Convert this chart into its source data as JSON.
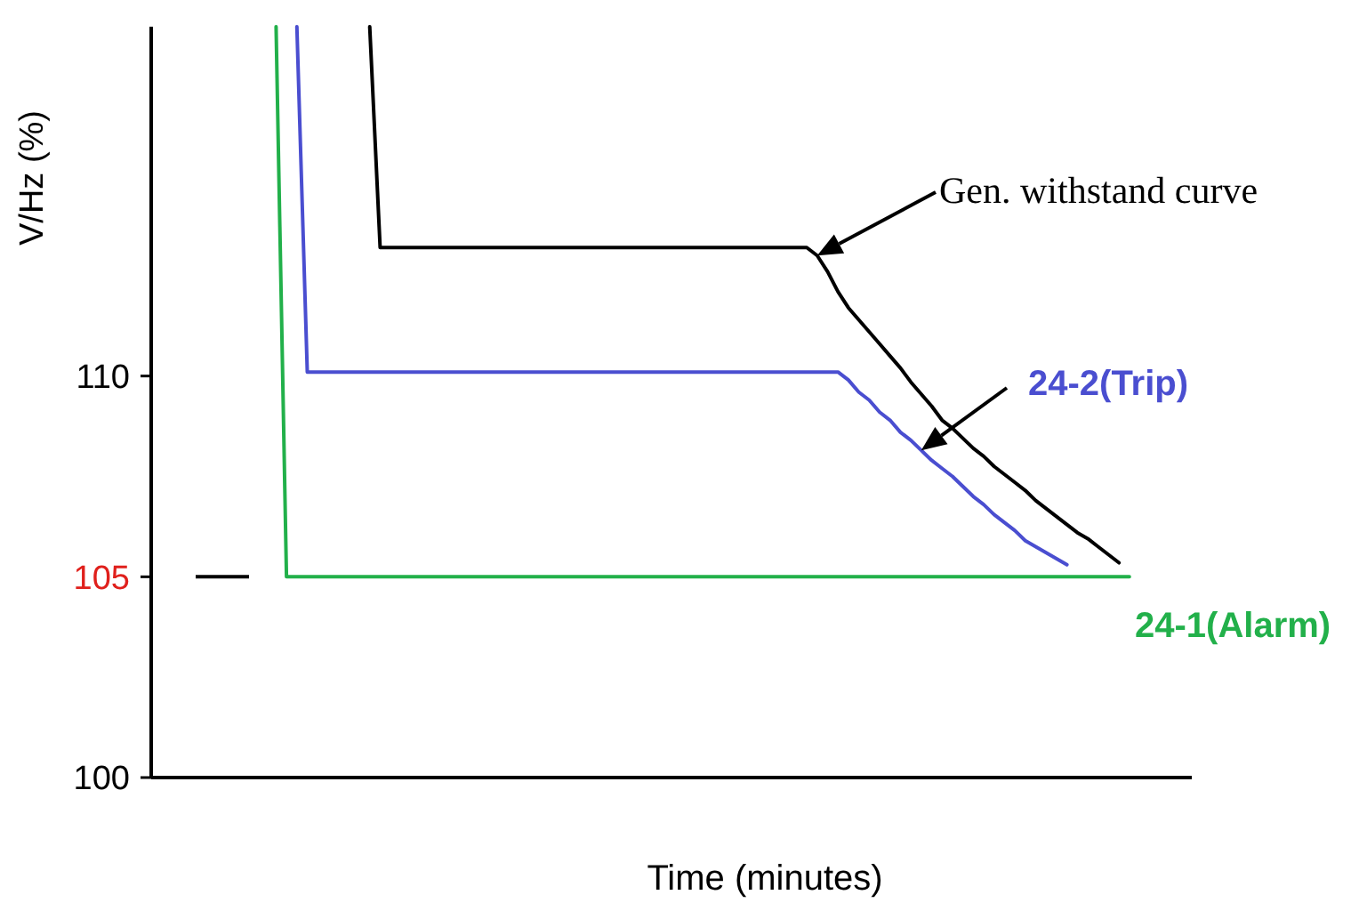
{
  "chart_data": {
    "type": "line",
    "xlabel": "Time (minutes)",
    "ylabel": "V/Hz (%)",
    "categories": [
      null,
      null,
      null,
      null,
      null,
      null,
      null,
      null,
      null,
      null,
      null,
      null,
      null,
      null,
      null,
      null,
      null,
      null,
      null,
      null,
      null,
      null,
      null,
      null,
      null,
      null,
      null,
      null,
      null,
      null,
      null,
      null,
      null,
      null,
      null,
      null,
      null,
      null,
      null,
      null,
      null,
      null,
      null,
      null,
      null,
      null,
      null,
      null,
      null,
      null,
      null,
      null,
      null,
      null,
      null,
      null,
      null,
      null,
      null,
      null,
      null,
      null,
      null,
      null,
      null,
      null,
      null,
      null,
      null,
      null,
      null,
      null,
      null,
      null,
      null,
      null,
      null,
      null,
      null,
      null,
      null,
      null,
      null,
      null,
      null,
      null,
      null,
      null,
      null,
      null,
      null,
      null,
      null,
      null,
      null,
      null,
      null,
      null,
      null,
      null,
      null
    ],
    "ylim": [
      100,
      118.7
    ],
    "yticks": [
      100,
      105,
      110
    ],
    "grid": false,
    "marker": "none",
    "line_style": "solid",
    "series": [
      {
        "name": "Gen. withstand curve",
        "color": "#000000",
        "values": [
          null,
          null,
          null,
          null,
          null,
          null,
          null,
          null,
          null,
          null,
          null,
          null,
          null,
          null,
          null,
          null,
          null,
          null,
          null,
          null,
          null,
          118.7,
          113.2,
          113.2,
          113.2,
          113.2,
          113.2,
          113.2,
          113.2,
          113.2,
          113.2,
          113.2,
          113.2,
          113.2,
          113.2,
          113.2,
          113.2,
          113.2,
          113.2,
          113.2,
          113.2,
          113.2,
          113.2,
          113.2,
          113.2,
          113.2,
          113.2,
          113.2,
          113.2,
          113.2,
          113.2,
          113.2,
          113.2,
          113.2,
          113.2,
          113.2,
          113.2,
          113.2,
          113.2,
          113.2,
          113.2,
          113.2,
          113.2,
          113.2,
          113.0,
          112.6,
          112.1,
          111.7,
          111.4,
          111.1,
          110.8,
          110.5,
          110.2,
          109.85,
          109.55,
          109.25,
          108.9,
          108.7,
          108.45,
          108.2,
          108.0,
          107.75,
          107.55,
          107.35,
          107.15,
          106.9,
          106.7,
          106.5,
          106.3,
          106.1,
          105.95,
          105.75,
          105.55,
          105.35,
          null,
          null,
          null,
          null,
          null,
          null,
          null
        ]
      },
      {
        "name": "24-2(Trip)",
        "color": "#4a4ed0",
        "values": [
          null,
          null,
          null,
          null,
          null,
          null,
          null,
          null,
          null,
          null,
          null,
          null,
          null,
          null,
          118.7,
          110.1,
          110.1,
          110.1,
          110.1,
          110.1,
          110.1,
          110.1,
          110.1,
          110.1,
          110.1,
          110.1,
          110.1,
          110.1,
          110.1,
          110.1,
          110.1,
          110.1,
          110.1,
          110.1,
          110.1,
          110.1,
          110.1,
          110.1,
          110.1,
          110.1,
          110.1,
          110.1,
          110.1,
          110.1,
          110.1,
          110.1,
          110.1,
          110.1,
          110.1,
          110.1,
          110.1,
          110.1,
          110.1,
          110.1,
          110.1,
          110.1,
          110.1,
          110.1,
          110.1,
          110.1,
          110.1,
          110.1,
          110.1,
          110.1,
          110.1,
          110.1,
          110.1,
          109.9,
          109.6,
          109.4,
          109.1,
          108.9,
          108.6,
          108.4,
          108.15,
          107.9,
          107.7,
          107.5,
          107.25,
          107.0,
          106.8,
          106.55,
          106.35,
          106.15,
          105.9,
          105.75,
          105.6,
          105.45,
          105.3,
          null,
          null,
          null,
          null,
          null,
          null,
          null,
          null,
          null,
          null,
          null,
          null
        ]
      },
      {
        "name": "24-1(Alarm)",
        "color": "#22b04a",
        "values": [
          null,
          null,
          null,
          null,
          null,
          null,
          null,
          null,
          null,
          null,
          null,
          null,
          118.7,
          105,
          105,
          105,
          105,
          105,
          105,
          105,
          105,
          105,
          105,
          105,
          105,
          105,
          105,
          105,
          105,
          105,
          105,
          105,
          105,
          105,
          105,
          105,
          105,
          105,
          105,
          105,
          105,
          105,
          105,
          105,
          105,
          105,
          105,
          105,
          105,
          105,
          105,
          105,
          105,
          105,
          105,
          105,
          105,
          105,
          105,
          105,
          105,
          105,
          105,
          105,
          105,
          105,
          105,
          105,
          105,
          105,
          105,
          105,
          105,
          105,
          105,
          105,
          105,
          105,
          105,
          105,
          105,
          105,
          105,
          105,
          105,
          105,
          105,
          105,
          105,
          105,
          105,
          105,
          105,
          105,
          105,
          null,
          null,
          null,
          null,
          null,
          null
        ]
      }
    ]
  }
}
